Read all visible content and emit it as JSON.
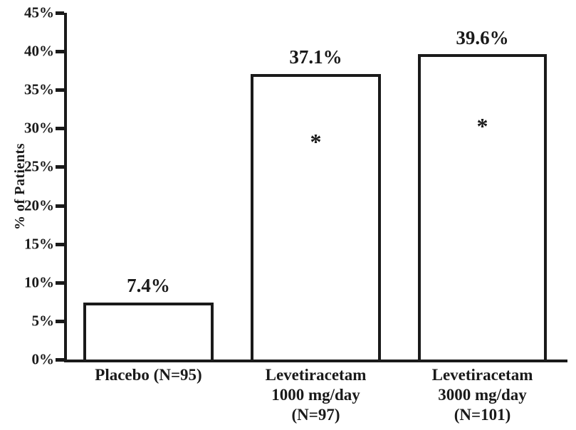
{
  "chart_data": {
    "type": "bar",
    "title": "",
    "xlabel": "",
    "ylabel": "% of Patients",
    "ylim": [
      0,
      45
    ],
    "ytick_step": 5,
    "yticks": [
      "0%",
      "5%",
      "10%",
      "15%",
      "20%",
      "25%",
      "30%",
      "35%",
      "40%",
      "45%"
    ],
    "grid": false,
    "legend": "none",
    "bar_fill": "#ffffff",
    "bar_border": "#1a1a1a",
    "categories": [
      {
        "label": "Placebo (N=95)",
        "lines": [
          "Placebo (N=95)"
        ]
      },
      {
        "label": "Levetiracetam 1000 mg/day (N=97)",
        "lines": [
          "Levetiracetam",
          "1000 mg/day",
          "(N=97)"
        ]
      },
      {
        "label": "Levetiracetam 3000 mg/day (N=101)",
        "lines": [
          "Levetiracetam",
          "3000 mg/day",
          "(N=101)"
        ]
      }
    ],
    "values": [
      7.4,
      37.1,
      39.6
    ],
    "value_labels": [
      "7.4%",
      "37.1%",
      "39.6%"
    ],
    "annotations": [
      "",
      "*",
      "*"
    ]
  }
}
